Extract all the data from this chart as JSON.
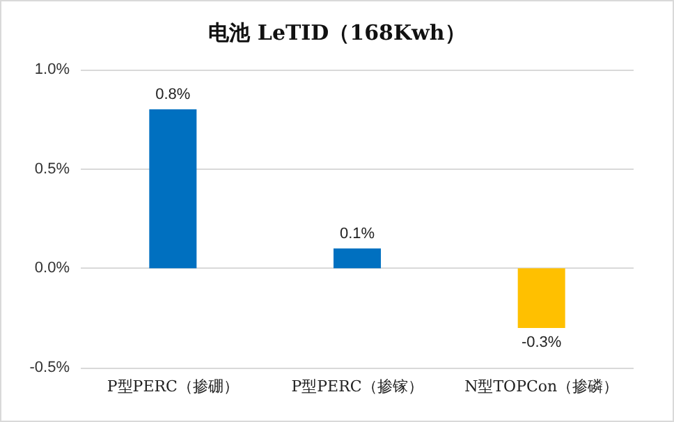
{
  "chart_data": {
    "type": "bar",
    "title": "电池 LeTID（168Kwh）",
    "categories": [
      "P型PERC（掺硼）",
      "P型PERC（掺镓）",
      "N型TOPCon（掺磷）"
    ],
    "values": [
      0.8,
      0.1,
      -0.3
    ],
    "colors": [
      "#0070c0",
      "#0070c0",
      "#ffc000"
    ],
    "value_labels": [
      "0.8%",
      "0.1%",
      "-0.3%"
    ],
    "ylim": [
      -0.5,
      1.0
    ],
    "yticks": [
      {
        "value": -0.5,
        "label": "-0.5%"
      },
      {
        "value": 0,
        "label": "0.0%"
      },
      {
        "value": 0.5,
        "label": "0.5%"
      },
      {
        "value": 1.0,
        "label": "1.0%"
      }
    ],
    "grid": "y"
  }
}
